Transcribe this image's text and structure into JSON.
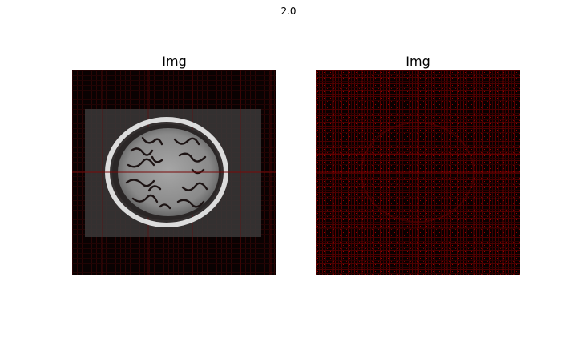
{
  "figure": {
    "suptitle": "2.0"
  },
  "panels": [
    {
      "title": "Img"
    },
    {
      "title": "Img"
    }
  ],
  "colors": {
    "background": "#ffffff",
    "image_base": "#0a0000",
    "artifact_red": "#b00000",
    "brain_gray": "#9a9a9a",
    "skull_white": "#e6e6e6",
    "sulci_dark": "#1c1010"
  }
}
